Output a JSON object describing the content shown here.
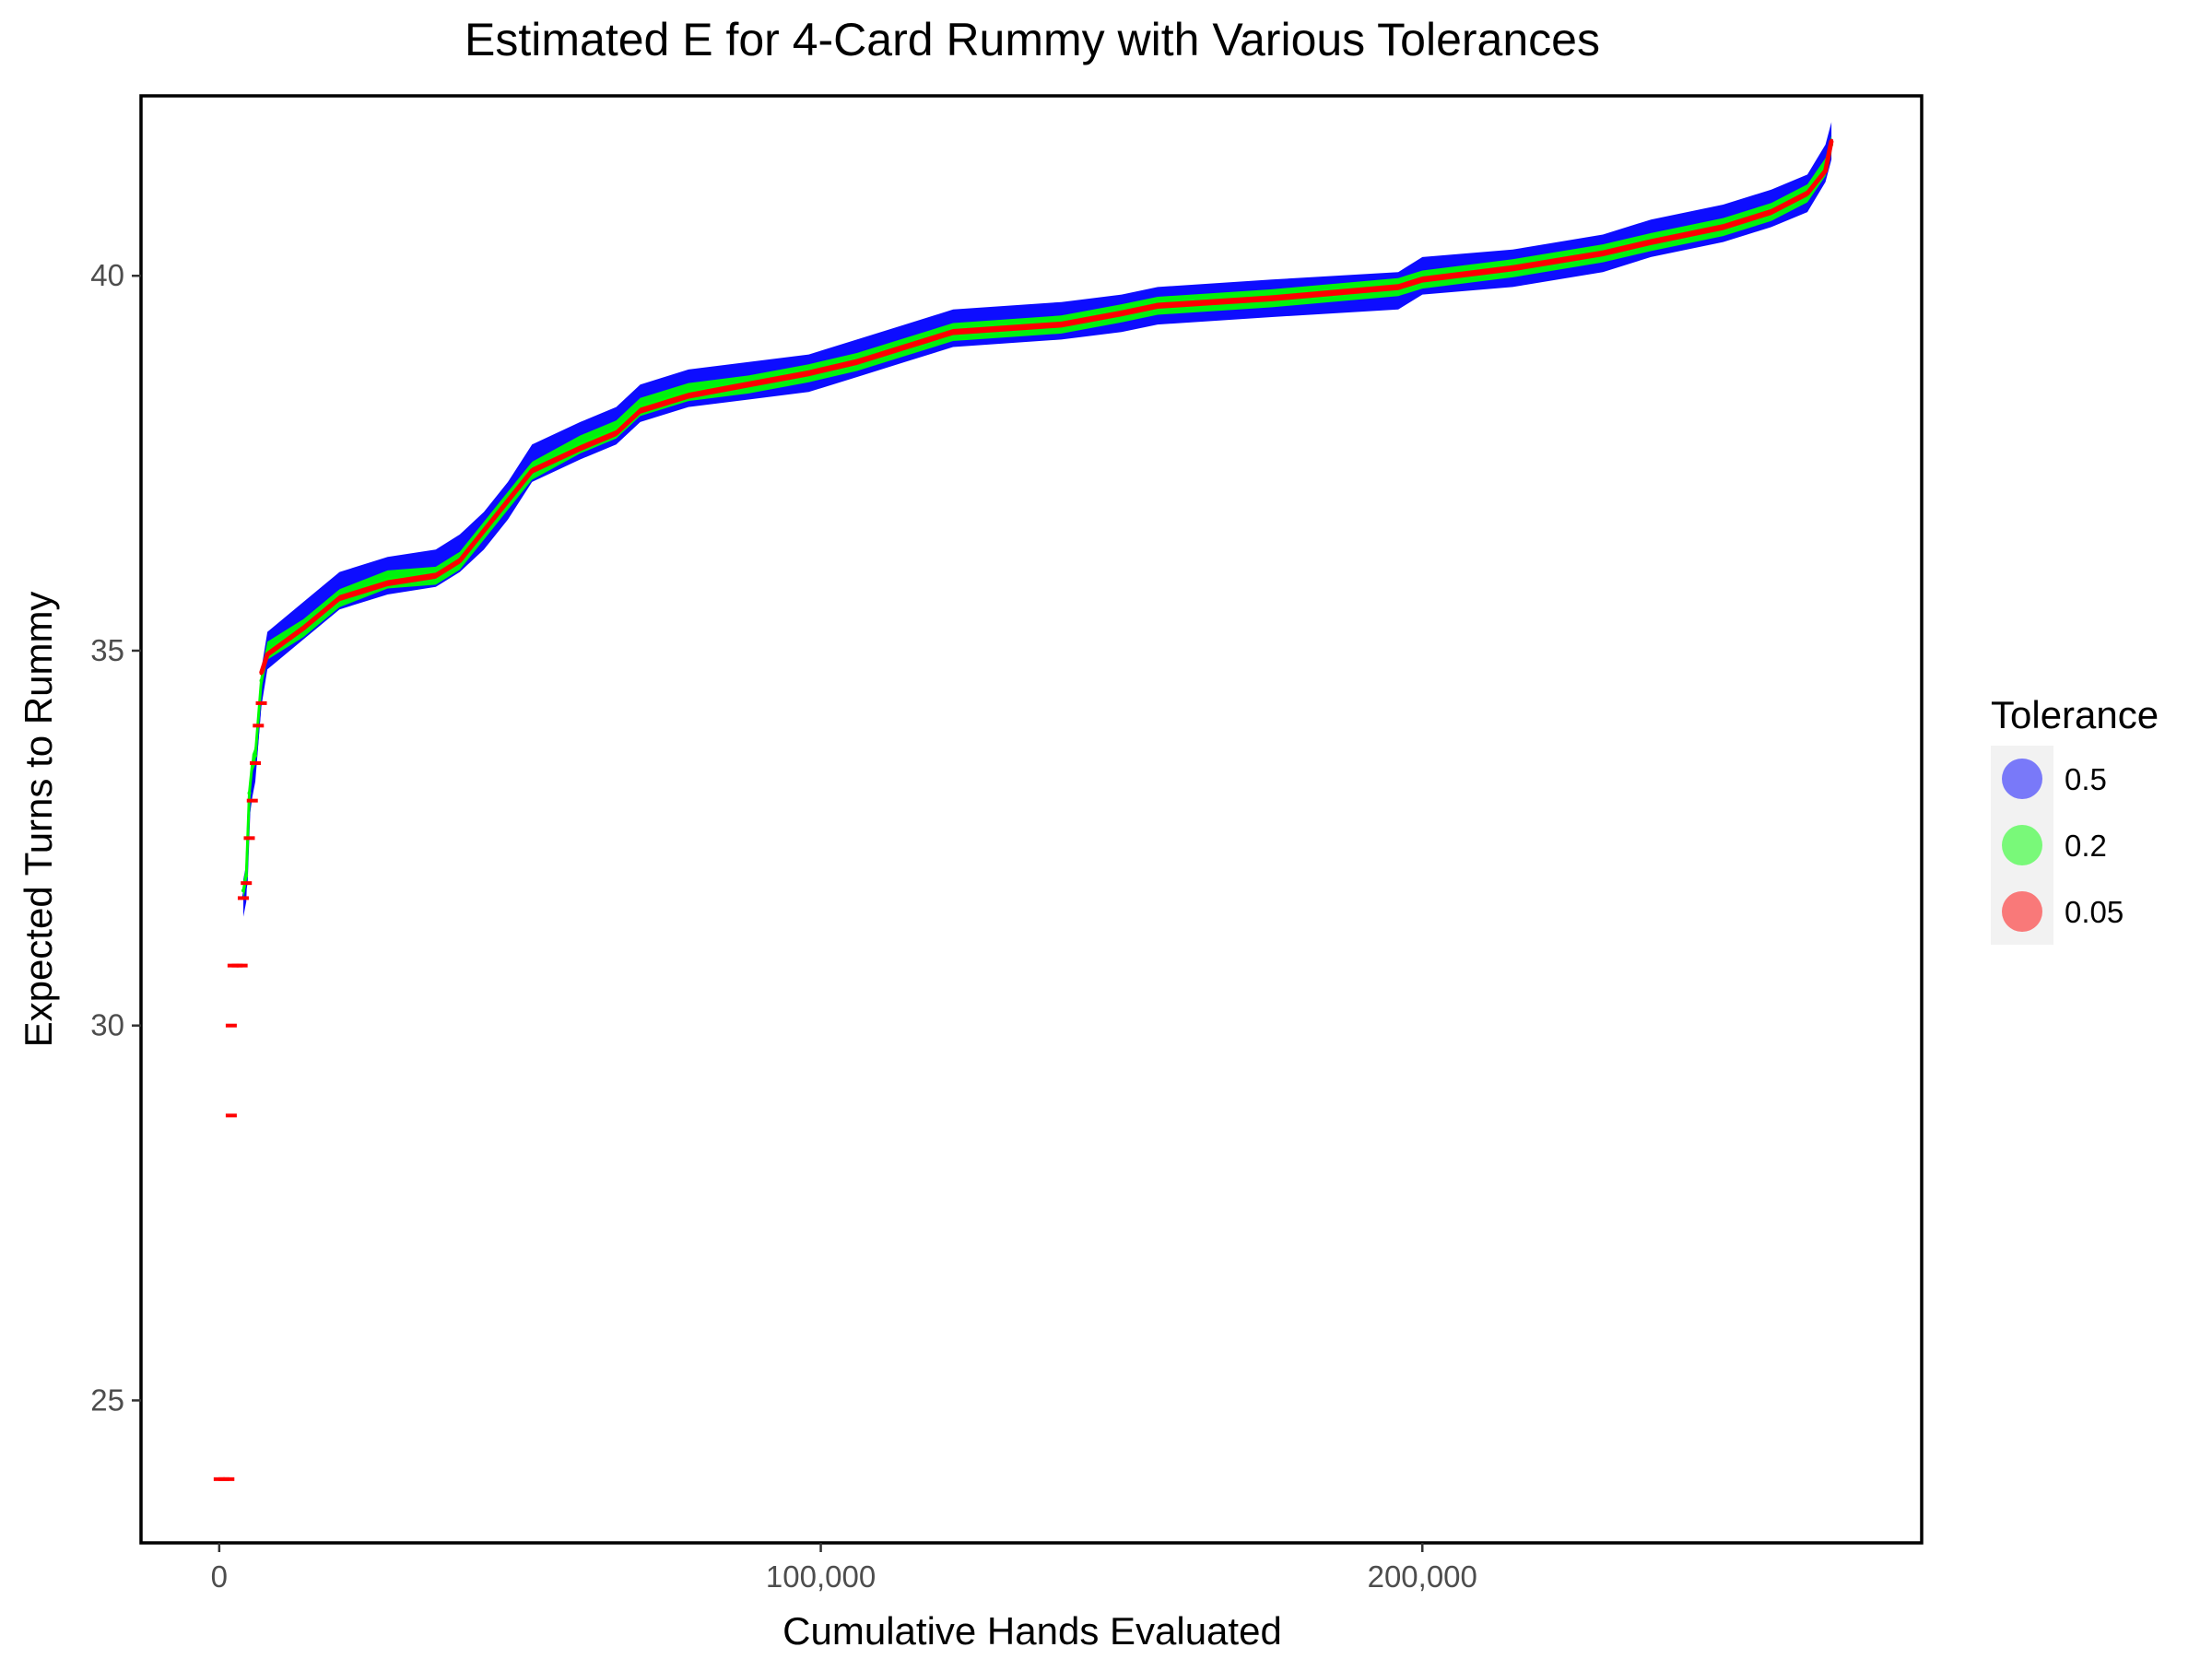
{
  "chart_data": {
    "type": "scatter",
    "title": "Estimated E for 4-Card Rummy with Various Tolerances",
    "xlabel": "Cumulative Hands Evaluated",
    "ylabel": "Expected Turns to Rummy",
    "xlim": [
      -13000,
      283000
    ],
    "ylim": [
      23.1,
      42.4
    ],
    "x_ticks": [
      0,
      100000,
      200000
    ],
    "x_tick_labels": [
      "0",
      "100,000",
      "200,000"
    ],
    "y_ticks": [
      25,
      30,
      35,
      40
    ],
    "y_tick_labels": [
      "25",
      "30",
      "35",
      "40"
    ],
    "grid": false,
    "legend_position": "right",
    "legend": {
      "title": "Tolerance",
      "entries": [
        {
          "label": "0.5",
          "color": "#0000ff"
        },
        {
          "label": "0.2",
          "color": "#00ff00"
        },
        {
          "label": "0.05",
          "color": "#ff0000"
        }
      ]
    },
    "series": [
      {
        "name": "0.5",
        "color": "#0000ff",
        "band_half_width": 0.25,
        "points": [
          [
            4000,
            31.7
          ],
          [
            4500,
            31.9
          ],
          [
            5000,
            33.0
          ],
          [
            5500,
            33.3
          ],
          [
            6000,
            33.5
          ],
          [
            7000,
            34.5
          ],
          [
            8000,
            35.0
          ],
          [
            14000,
            35.4
          ],
          [
            20000,
            35.8
          ],
          [
            28000,
            36.0
          ],
          [
            36000,
            36.1
          ],
          [
            40000,
            36.3
          ],
          [
            44000,
            36.6
          ],
          [
            48000,
            37.0
          ],
          [
            52000,
            37.5
          ],
          [
            60000,
            37.8
          ],
          [
            66000,
            38.0
          ],
          [
            70000,
            38.3
          ],
          [
            78000,
            38.5
          ],
          [
            88000,
            38.6
          ],
          [
            98000,
            38.7
          ],
          [
            106000,
            38.9
          ],
          [
            114000,
            39.1
          ],
          [
            122000,
            39.3
          ],
          [
            140000,
            39.4
          ],
          [
            150000,
            39.5
          ],
          [
            156000,
            39.6
          ],
          [
            175000,
            39.7
          ],
          [
            196000,
            39.8
          ],
          [
            200000,
            40.0
          ],
          [
            215000,
            40.1
          ],
          [
            230000,
            40.3
          ],
          [
            238000,
            40.5
          ],
          [
            250000,
            40.7
          ],
          [
            258000,
            40.9
          ],
          [
            264000,
            41.1
          ],
          [
            267000,
            41.5
          ],
          [
            268000,
            41.8
          ]
        ]
      },
      {
        "name": "0.2",
        "color": "#00ff00",
        "band_half_width": 0.12,
        "points": [
          [
            4000,
            31.8
          ],
          [
            4500,
            32.0
          ],
          [
            5000,
            33.1
          ],
          [
            5500,
            33.5
          ],
          [
            6000,
            33.6
          ],
          [
            7000,
            34.6
          ],
          [
            8000,
            35.0
          ],
          [
            14000,
            35.3
          ],
          [
            20000,
            35.7
          ],
          [
            28000,
            35.95
          ],
          [
            36000,
            36.0
          ],
          [
            40000,
            36.2
          ],
          [
            44000,
            36.6
          ],
          [
            48000,
            37.0
          ],
          [
            52000,
            37.4
          ],
          [
            60000,
            37.75
          ],
          [
            66000,
            37.95
          ],
          [
            70000,
            38.25
          ],
          [
            78000,
            38.45
          ],
          [
            88000,
            38.55
          ],
          [
            98000,
            38.7
          ],
          [
            106000,
            38.85
          ],
          [
            114000,
            39.05
          ],
          [
            122000,
            39.25
          ],
          [
            140000,
            39.35
          ],
          [
            150000,
            39.5
          ],
          [
            156000,
            39.6
          ],
          [
            175000,
            39.7
          ],
          [
            196000,
            39.85
          ],
          [
            200000,
            39.95
          ],
          [
            215000,
            40.1
          ],
          [
            230000,
            40.3
          ],
          [
            238000,
            40.45
          ],
          [
            250000,
            40.65
          ],
          [
            258000,
            40.85
          ],
          [
            264000,
            41.1
          ],
          [
            267000,
            41.45
          ],
          [
            268000,
            41.75
          ]
        ]
      },
      {
        "name": "0.05",
        "color": "#ff0000",
        "band_half_width": 0.04,
        "points": [
          [
            7000,
            34.7
          ],
          [
            8000,
            34.95
          ],
          [
            14000,
            35.3
          ],
          [
            20000,
            35.7
          ],
          [
            28000,
            35.9
          ],
          [
            36000,
            36.0
          ],
          [
            40000,
            36.2
          ],
          [
            44000,
            36.6
          ],
          [
            48000,
            37.0
          ],
          [
            52000,
            37.4
          ],
          [
            60000,
            37.7
          ],
          [
            66000,
            37.9
          ],
          [
            70000,
            38.2
          ],
          [
            78000,
            38.4
          ],
          [
            88000,
            38.55
          ],
          [
            98000,
            38.7
          ],
          [
            106000,
            38.85
          ],
          [
            114000,
            39.05
          ],
          [
            122000,
            39.25
          ],
          [
            140000,
            39.35
          ],
          [
            150000,
            39.5
          ],
          [
            156000,
            39.6
          ],
          [
            175000,
            39.7
          ],
          [
            196000,
            39.85
          ],
          [
            200000,
            39.95
          ],
          [
            215000,
            40.1
          ],
          [
            230000,
            40.3
          ],
          [
            238000,
            40.45
          ],
          [
            250000,
            40.65
          ],
          [
            258000,
            40.85
          ],
          [
            264000,
            41.1
          ],
          [
            267000,
            41.4
          ],
          [
            268000,
            41.8
          ]
        ]
      },
      {
        "name": "0.05",
        "color": "#ff0000",
        "scattered": true,
        "points": [
          [
            0,
            23.95
          ],
          [
            800,
            23.95
          ],
          [
            1600,
            23.95
          ],
          [
            2000,
            28.8
          ],
          [
            2000,
            30.0
          ],
          [
            2300,
            30.8
          ],
          [
            3000,
            30.8
          ],
          [
            3800,
            30.8
          ],
          [
            4000,
            31.7
          ],
          [
            4500,
            31.9
          ],
          [
            5000,
            32.5
          ],
          [
            5500,
            33.0
          ],
          [
            6000,
            33.5
          ],
          [
            6500,
            34.0
          ],
          [
            7000,
            34.3
          ]
        ]
      }
    ]
  }
}
